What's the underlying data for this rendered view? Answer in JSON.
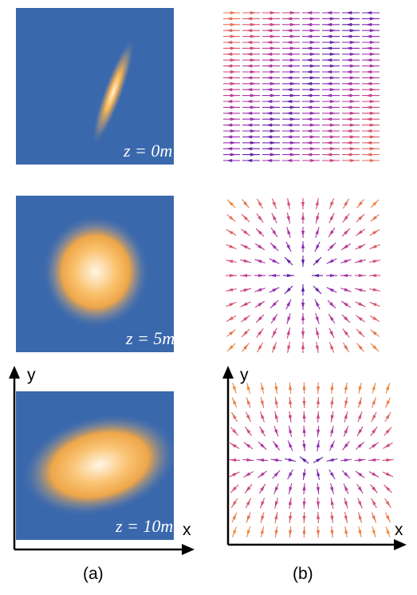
{
  "panels_a": [
    {
      "z_label": "z = 0m"
    },
    {
      "z_label": "z = 5m"
    },
    {
      "z_label": "z = 10m"
    }
  ],
  "axes": {
    "x_label": "x",
    "y_label": "y"
  },
  "captions": {
    "a": "(a)",
    "b": "(b)"
  },
  "colors": {
    "background_blue": "#3a68ad",
    "beam_core": "#fff3d9",
    "beam_orange": "#f6a93f",
    "arrow_dark": "#2a1a9a",
    "arrow_purple": "#9a2fb5",
    "arrow_pink": "#d24a7a",
    "arrow_orange": "#f08a3c"
  }
}
